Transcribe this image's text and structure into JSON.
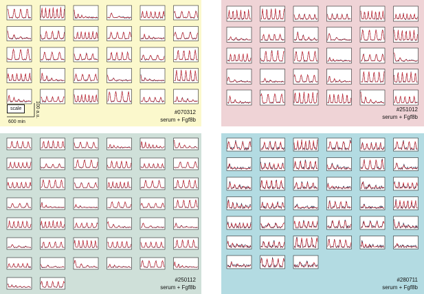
{
  "colors": {
    "trace_black": "#1a1a3a",
    "trace_red": "#d8202a"
  },
  "scale": {
    "box_label": "scale",
    "x_label": "600 min",
    "y_label": "100 a.u."
  },
  "chart_data": [
    {
      "type": "line",
      "id": "070312",
      "label": "#070312",
      "condition": "serum + Fgf8b",
      "background": "#fbf8cc",
      "rows": 5,
      "cols": 6,
      "plot_count": 30
    },
    {
      "type": "line",
      "id": "251012",
      "label": "#251012",
      "condition": "serum + Fgf8b",
      "background": "#efd3d6",
      "rows": 5,
      "cols": 6,
      "plot_count": 30
    },
    {
      "type": "line",
      "id": "250112",
      "label": "#250112",
      "condition": "serum + Fgf8b",
      "background": "#cfe0d9",
      "rows": 8,
      "cols": 6,
      "plot_count": 44
    },
    {
      "type": "line",
      "id": "280711",
      "label": "#280711",
      "condition": "serum + Fgf8b",
      "background": "#b3dbe2",
      "rows": 7,
      "cols": 6,
      "plot_count": 39
    }
  ]
}
